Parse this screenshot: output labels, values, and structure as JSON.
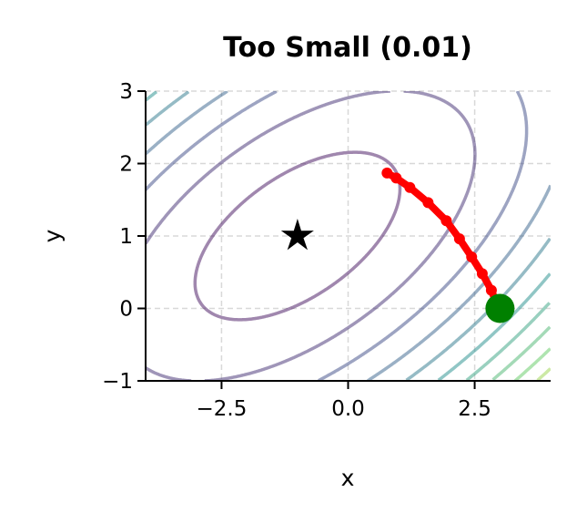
{
  "chart_data": {
    "type": "line",
    "title": "Too Small (0.01)",
    "xlabel": "x",
    "ylabel": "y",
    "xlim": [
      -4,
      4
    ],
    "ylim": [
      -1,
      3
    ],
    "xticks": [
      -2.5,
      0.0,
      2.5
    ],
    "xtick_labels": [
      "−2.5",
      "0.0",
      "2.5"
    ],
    "yticks": [
      -1,
      0,
      1,
      2,
      3
    ],
    "ytick_labels": [
      "−1",
      "0",
      "1",
      "2",
      "3"
    ],
    "grid": true,
    "contour": {
      "minimum": [
        -1,
        1
      ],
      "colormap": "viridis",
      "levels": [
        1,
        3,
        5,
        7,
        9,
        11,
        13,
        15,
        17,
        19,
        21,
        23,
        25,
        27,
        29,
        31,
        33,
        35,
        37,
        39,
        41
      ]
    },
    "optimum_marker": {
      "x": -1,
      "y": 1,
      "shape": "star",
      "color": "#000000"
    },
    "start_marker": {
      "x": 3,
      "y": 0,
      "shape": "circle",
      "color": "#008000"
    },
    "path": {
      "color": "#ff0000",
      "x": [
        2.97,
        2.83,
        2.65,
        2.44,
        2.2,
        1.94,
        1.58,
        1.22,
        0.95,
        0.77
      ],
      "y": [
        0.0,
        0.25,
        0.48,
        0.71,
        0.96,
        1.21,
        1.46,
        1.67,
        1.8,
        1.87
      ]
    }
  }
}
